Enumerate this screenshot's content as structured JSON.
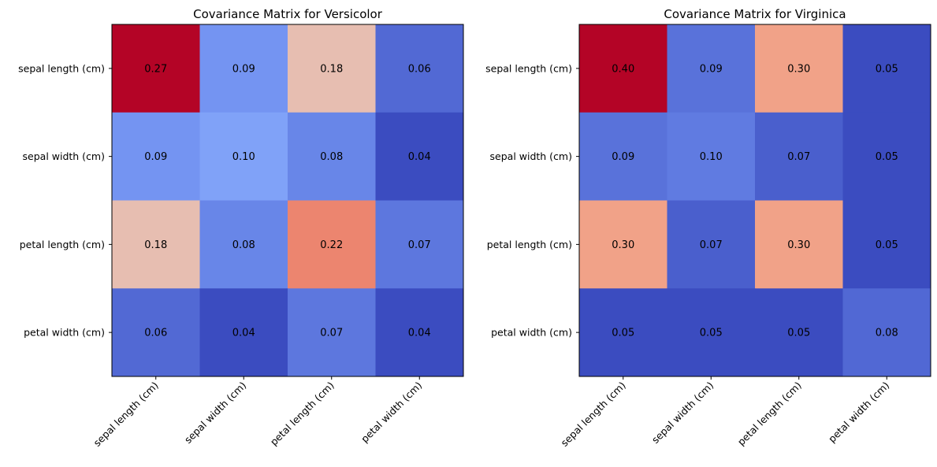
{
  "chart_data": [
    {
      "type": "heatmap",
      "title": "Covariance Matrix for Versicolor",
      "row_labels": [
        "sepal length (cm)",
        "sepal width (cm)",
        "petal length (cm)",
        "petal width (cm)"
      ],
      "col_labels": [
        "sepal length (cm)",
        "sepal width (cm)",
        "petal length (cm)",
        "petal width (cm)"
      ],
      "values": [
        [
          0.27,
          0.09,
          0.18,
          0.06
        ],
        [
          0.09,
          0.1,
          0.08,
          0.04
        ],
        [
          0.18,
          0.08,
          0.22,
          0.07
        ],
        [
          0.06,
          0.04,
          0.07,
          0.04
        ]
      ],
      "cell_labels": [
        [
          "0.27",
          "0.09",
          "0.18",
          "0.06"
        ],
        [
          "0.09",
          "0.10",
          "0.08",
          "0.04"
        ],
        [
          "0.18",
          "0.08",
          "0.22",
          "0.07"
        ],
        [
          "0.06",
          "0.04",
          "0.07",
          "0.04"
        ]
      ],
      "colormap": "coolwarm",
      "color_range": [
        0.04,
        0.27
      ]
    },
    {
      "type": "heatmap",
      "title": "Covariance Matrix for Virginica",
      "row_labels": [
        "sepal length (cm)",
        "sepal width (cm)",
        "petal length (cm)",
        "petal width (cm)"
      ],
      "col_labels": [
        "sepal length (cm)",
        "sepal width (cm)",
        "petal length (cm)",
        "petal width (cm)"
      ],
      "values": [
        [
          0.4,
          0.09,
          0.3,
          0.05
        ],
        [
          0.09,
          0.1,
          0.07,
          0.05
        ],
        [
          0.3,
          0.07,
          0.3,
          0.05
        ],
        [
          0.05,
          0.05,
          0.05,
          0.08
        ]
      ],
      "cell_labels": [
        [
          "0.40",
          "0.09",
          "0.30",
          "0.05"
        ],
        [
          "0.09",
          "0.10",
          "0.07",
          "0.05"
        ],
        [
          "0.30",
          "0.07",
          "0.30",
          "0.05"
        ],
        [
          "0.05",
          "0.05",
          "0.05",
          "0.08"
        ]
      ],
      "colormap": "coolwarm",
      "color_range": [
        0.05,
        0.4
      ]
    }
  ]
}
